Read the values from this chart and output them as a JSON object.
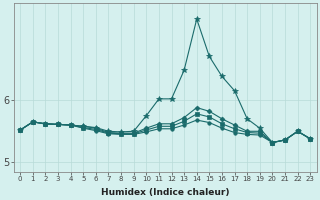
{
  "xlabel": "Humidex (Indice chaleur)",
  "bg_color": "#d5f0ee",
  "grid_color": "#b8dbd8",
  "line_color": "#1a6b6b",
  "x_labels": [
    "0",
    "1",
    "2",
    "3",
    "4",
    "5",
    "6",
    "7",
    "8",
    "9",
    "10",
    "11",
    "12",
    "13",
    "14",
    "15",
    "16",
    "17",
    "18",
    "19",
    "20",
    "21",
    "22",
    "23"
  ],
  "xlim": [
    -0.5,
    23.5
  ],
  "ylim": [
    4.85,
    7.55
  ],
  "yticks": [
    5,
    6
  ],
  "series": [
    [
      5.52,
      5.65,
      5.62,
      5.61,
      5.6,
      5.58,
      5.56,
      5.5,
      5.49,
      5.5,
      5.75,
      6.02,
      6.02,
      6.48,
      7.3,
      6.7,
      6.38,
      6.15,
      5.7,
      5.55,
      5.32,
      5.36,
      5.5,
      5.38
    ],
    [
      5.52,
      5.65,
      5.62,
      5.61,
      5.6,
      5.58,
      5.55,
      5.48,
      5.47,
      5.47,
      5.55,
      5.62,
      5.62,
      5.72,
      5.88,
      5.82,
      5.7,
      5.6,
      5.5,
      5.5,
      5.32,
      5.36,
      5.5,
      5.38
    ],
    [
      5.52,
      5.65,
      5.62,
      5.61,
      5.6,
      5.56,
      5.53,
      5.47,
      5.46,
      5.46,
      5.52,
      5.58,
      5.58,
      5.66,
      5.78,
      5.73,
      5.62,
      5.54,
      5.48,
      5.47,
      5.32,
      5.36,
      5.5,
      5.38
    ],
    [
      5.52,
      5.65,
      5.62,
      5.61,
      5.6,
      5.55,
      5.51,
      5.46,
      5.45,
      5.45,
      5.49,
      5.54,
      5.54,
      5.6,
      5.68,
      5.64,
      5.55,
      5.48,
      5.45,
      5.44,
      5.32,
      5.36,
      5.5,
      5.38
    ]
  ],
  "markers": [
    "*",
    "D",
    "s",
    "o"
  ],
  "markersizes": [
    4,
    2.5,
    2.5,
    2.5
  ]
}
